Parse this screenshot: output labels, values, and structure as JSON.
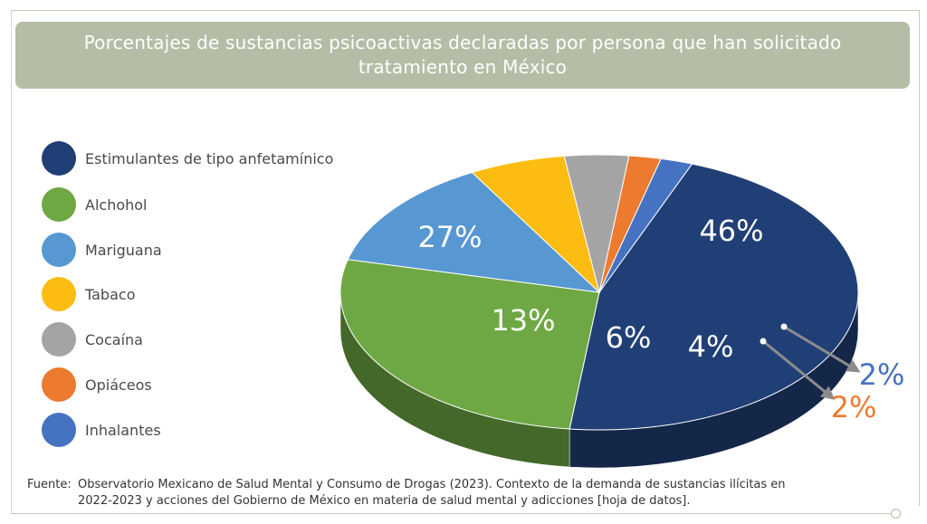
{
  "title": "Porcentajes de sustancias psicoactivas declaradas por persona que han solicitado tratamiento en México",
  "legend": [
    {
      "label": "Estimulantes de tipo anfetamínico",
      "color": "#203f76"
    },
    {
      "label": "Alchohol",
      "color": "#6ea844"
    },
    {
      "label": "Mariguana",
      "color": "#5797d2"
    },
    {
      "label": "Tabaco",
      "color": "#fcbc12"
    },
    {
      "label": "Cocaína",
      "color": "#a4a4a4"
    },
    {
      "label": "Opiáceos",
      "color": "#ec7a2f"
    },
    {
      "label": "Inhalantes",
      "color": "#4672c2"
    }
  ],
  "chart_data": {
    "type": "pie",
    "title": "Porcentajes de sustancias psicoactivas declaradas por persona que han solicitado tratamiento en México",
    "categories": [
      "Estimulantes de tipo anfetamínico",
      "Alchohol",
      "Mariguana",
      "Tabaco",
      "Cocaína",
      "Opiáceos",
      "Inhalantes"
    ],
    "values": [
      46,
      27,
      13,
      6,
      4,
      2,
      2
    ],
    "data_labels": [
      "46%",
      "27%",
      "13%",
      "6%",
      "4%",
      "2%",
      "2%"
    ],
    "colors": [
      "#203f76",
      "#6ea844",
      "#5797d2",
      "#fcbc12",
      "#a4a4a4",
      "#ec7a2f",
      "#4672c2"
    ],
    "style": "3d",
    "legend_position": "left"
  },
  "source": {
    "label": "Fuente:",
    "line1": "Observatorio Mexicano de Salud Mental y Consumo de Drogas (2023). Contexto de la demanda de sustancias ilícitas en",
    "line2": "2022-2023 y acciones del Gobierno de México en materia de salud mental y adicciones [hoja de datos]."
  }
}
